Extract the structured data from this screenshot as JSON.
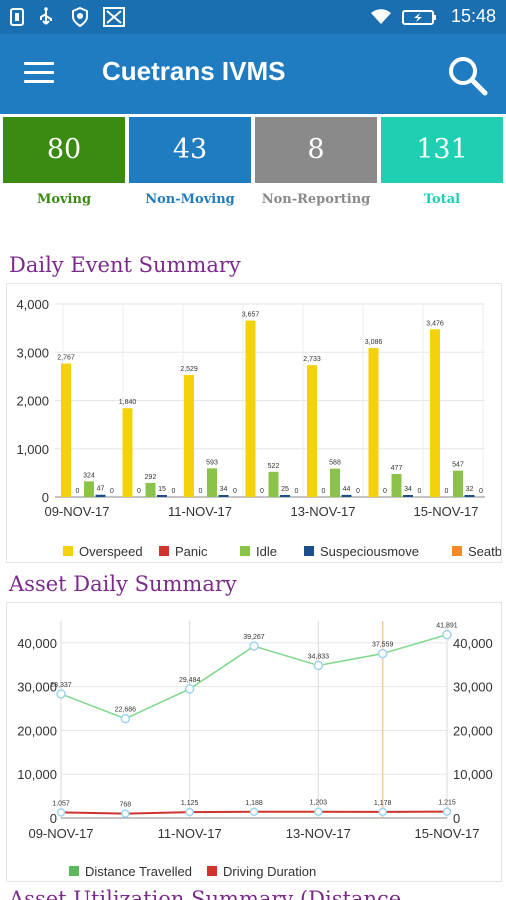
{
  "status_bar": {
    "time": "15:48",
    "icons": [
      "sim-icon",
      "usb-icon",
      "shield-icon",
      "app-icon",
      "wifi-icon",
      "battery-icon"
    ]
  },
  "app_bar": {
    "title": "Cuetrans IVMS",
    "menu_icon": "menu-icon",
    "search_icon": "search-icon"
  },
  "tiles": [
    {
      "value": "80",
      "label": "Moving",
      "color": "#3b8b13",
      "label_color": "#3b8b13"
    },
    {
      "value": "43",
      "label": "Non-Moving",
      "color": "#1f7cc1",
      "label_color": "#1f7cc1"
    },
    {
      "value": "8",
      "label": "Non-Reporting",
      "color": "#8a8a8a",
      "label_color": "#8a8a8a"
    },
    {
      "value": "131",
      "label": "Total",
      "color": "#1ecfb2",
      "label_color": "#1ecfb2"
    }
  ],
  "daily_event_summary": {
    "title": "Daily Event Summary",
    "chart_data": {
      "type": "bar",
      "x_tick_labels": [
        "09-NOV-17",
        "11-NOV-17",
        "13-NOV-17",
        "15-NOV-17"
      ],
      "ylim": [
        0,
        4000
      ],
      "y_ticks": [
        "0",
        "1,000",
        "2,000",
        "3,000",
        "4,000"
      ],
      "grid": true,
      "legend_position": "bottom",
      "series": [
        {
          "name": "Overspeed",
          "color": "#f3d20b",
          "values": [
            2767,
            1840,
            2529,
            3657,
            2733,
            3086,
            3476
          ]
        },
        {
          "name": "Panic",
          "color": "#d0332c",
          "values": [
            0,
            0,
            0,
            0,
            0,
            0,
            0
          ]
        },
        {
          "name": "Idle",
          "color": "#8bc34a",
          "values": [
            324,
            292,
            593,
            522,
            588,
            477,
            547
          ]
        },
        {
          "name": "Suspeciousmove",
          "color": "#1c4f8a",
          "values": [
            47,
            15,
            34,
            25,
            44,
            34,
            32
          ]
        },
        {
          "name": "Seatbeltviolation",
          "color": "#f08a2a",
          "values": [
            0,
            0,
            0,
            0,
            0,
            0,
            0
          ]
        }
      ]
    }
  },
  "asset_daily_summary": {
    "title": "Asset Daily Summary",
    "chart_data": {
      "type": "line",
      "x_tick_labels": [
        "09-NOV-17",
        "11-NOV-17",
        "13-NOV-17",
        "15-NOV-17"
      ],
      "ylim": [
        0,
        45000
      ],
      "y_ticks": [
        "0",
        "10,000",
        "20,000",
        "30,000",
        "40,000"
      ],
      "grid": true,
      "legend_position": "bottom",
      "series": [
        {
          "name": "Distance Travelled",
          "color": "#5cb85c",
          "values": [
            28337,
            22686,
            29484,
            39267,
            34833,
            37559,
            41891
          ],
          "labels": [
            "28,337",
            "22,686",
            "29,484",
            "39,267",
            "34,833",
            "37,559",
            "41,891"
          ]
        },
        {
          "name": "Driving Duration",
          "color": "#d0332c",
          "values": [
            1057,
            768,
            1125,
            1188,
            1203,
            1178,
            1215
          ],
          "labels": [
            "1,057",
            "768",
            "1,125",
            "1,188",
            "1,203",
            "1,178",
            "1,215"
          ]
        }
      ]
    }
  },
  "next_section_title": "Asset Utilization Summary (Distance"
}
